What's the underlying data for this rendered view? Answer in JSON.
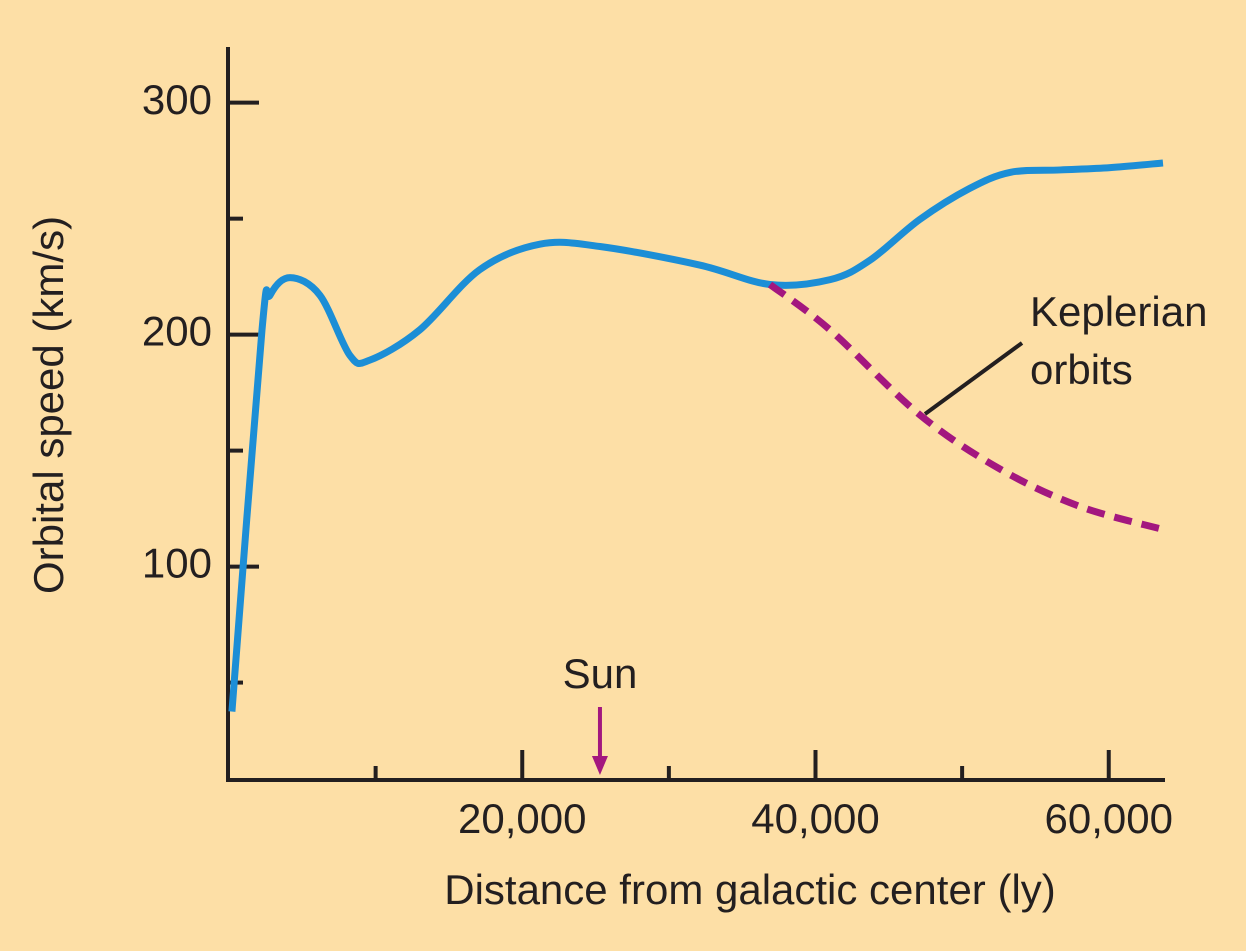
{
  "chart_data": {
    "type": "line",
    "xlabel": "Distance from galactic center (ly)",
    "ylabel": "Orbital speed (km/s)",
    "xlim": [
      0,
      63700
    ],
    "ylim": [
      8,
      324
    ],
    "xticks": [
      {
        "value": 20000,
        "label": "20,000"
      },
      {
        "value": 40000,
        "label": "40,000"
      },
      {
        "value": 60000,
        "label": "60,000"
      }
    ],
    "minor_xticks": [
      10000,
      30000,
      50000
    ],
    "yticks": [
      100,
      200,
      300
    ],
    "minor_yticks": [
      50,
      150,
      250
    ],
    "background": "#fddfa6",
    "series": [
      {
        "color": "#1c8ed6",
        "style": "solid",
        "x": [
          200,
          2250,
          2800,
          4160,
          6200,
          8250,
          9600,
          13000,
          17100,
          21200,
          25300,
          32100,
          36900,
          41000,
          43700,
          47100,
          50500,
          53300,
          56700,
          60100,
          63700
        ],
        "values": [
          37.5,
          202,
          217,
          224.6,
          217,
          191,
          189,
          202,
          228,
          239,
          238,
          230,
          221.6,
          223.7,
          232,
          249.6,
          263,
          270,
          271,
          272,
          274
        ]
      },
      {
        "color": "#a3177f",
        "style": "dashed",
        "x": [
          36900,
          41000,
          47100,
          52600,
          58000,
          63700
        ],
        "values": [
          221.6,
          202,
          165.5,
          142,
          126,
          116
        ]
      }
    ],
    "annotations": [
      {
        "text": "Sun",
        "x": 25300,
        "color": "#a3177f"
      },
      {
        "lines": [
          "Keplerian",
          "orbits"
        ]
      }
    ]
  }
}
